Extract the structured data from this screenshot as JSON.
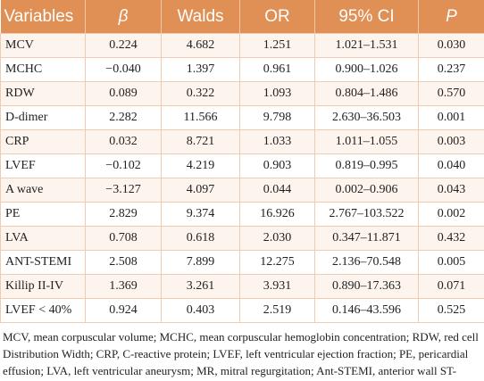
{
  "table": {
    "header": [
      "Variables",
      "β",
      "Walds",
      "OR",
      "95% CI",
      "P"
    ],
    "rows": [
      [
        "MCV",
        "0.224",
        "4.682",
        "1.251",
        "1.021–1.531",
        "0.030"
      ],
      [
        "MCHC",
        "−0.040",
        "1.397",
        "0.961",
        "0.900–1.026",
        "0.237"
      ],
      [
        "RDW",
        "0.089",
        "0.322",
        "1.093",
        "0.804–1.486",
        "0.570"
      ],
      [
        "D-dimer",
        "2.282",
        "11.566",
        "9.798",
        "2.630–36.503",
        "0.001"
      ],
      [
        "CRP",
        "0.032",
        "8.721",
        "1.033",
        "1.011–1.055",
        "0.003"
      ],
      [
        "LVEF",
        "−0.102",
        "4.219",
        "0.903",
        "0.819–0.995",
        "0.040"
      ],
      [
        "A wave",
        "−3.127",
        "4.097",
        "0.044",
        "0.002–0.906",
        "0.043"
      ],
      [
        "PE",
        "2.829",
        "9.374",
        "16.926",
        "2.767–103.522",
        "0.002"
      ],
      [
        "LVA",
        "0.708",
        "0.618",
        "2.030",
        "0.347–11.871",
        "0.432"
      ],
      [
        "ANT-STEMI",
        "2.508",
        "7.899",
        "12.275",
        "2.136–70.548",
        "0.005"
      ],
      [
        "Killip II-IV",
        "1.369",
        "3.261",
        "3.931",
        "0.890–17.363",
        "0.071"
      ],
      [
        "LVEF < 40%",
        "0.924",
        "0.403",
        "2.519",
        "0.146–43.596",
        "0.525"
      ]
    ]
  },
  "footnote": "MCV, mean corpuscular volume; MCHC, mean corpuscular hemoglobin concentration; RDW, red cell Distribution Width; CRP, C-reactive protein; LVEF, left ventricular ejection fraction; PE, pericardial effusion; LVA, left ventricular aneurysm; MR, mitral regurgitation; Ant-STEMI, anterior wall ST-segment elevation myocardial infarction."
}
